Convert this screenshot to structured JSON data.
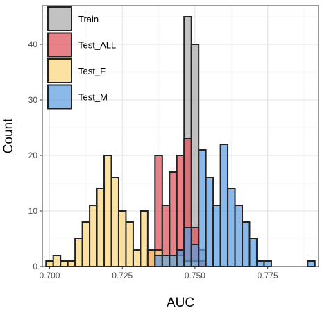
{
  "chart_data": {
    "type": "bar",
    "subtype": "overlaid-histogram",
    "xlabel": "AUC",
    "ylabel": "Count",
    "xlim": [
      0.6975,
      0.7925
    ],
    "ylim": [
      0,
      47
    ],
    "x_ticks": [
      0.7,
      0.725,
      0.75,
      0.775
    ],
    "x_tick_labels": [
      "0.700",
      "0.725",
      "0.750",
      "0.775"
    ],
    "y_ticks": [
      0,
      10,
      20,
      30,
      40
    ],
    "y_tick_labels": [
      "0",
      "10",
      "20",
      "30",
      "40"
    ],
    "bin_width": 0.0025,
    "grid": true,
    "legend_position": "top-left",
    "series": [
      {
        "name": "Train",
        "color": "#aaaaaa",
        "bins": [
          [
            0.745,
            3
          ],
          [
            0.7475,
            45
          ],
          [
            0.75,
            40
          ],
          [
            0.7525,
            3
          ]
        ]
      },
      {
        "name": "Test_ALL",
        "color": "#e0525a",
        "bins": [
          [
            0.7325,
            0
          ],
          [
            0.735,
            3
          ],
          [
            0.7375,
            20
          ],
          [
            0.74,
            11
          ],
          [
            0.7425,
            17
          ],
          [
            0.745,
            20
          ],
          [
            0.7475,
            23
          ],
          [
            0.75,
            7
          ],
          [
            0.7525,
            1
          ]
        ]
      },
      {
        "name": "Test_F",
        "color": "#f9d57e",
        "bins": [
          [
            0.7,
            1
          ],
          [
            0.7025,
            2
          ],
          [
            0.705,
            1
          ],
          [
            0.7075,
            1
          ],
          [
            0.71,
            5
          ],
          [
            0.7125,
            8
          ],
          [
            0.715,
            11
          ],
          [
            0.7175,
            14
          ],
          [
            0.72,
            20
          ],
          [
            0.7225,
            16
          ],
          [
            0.725,
            10
          ],
          [
            0.7275,
            8
          ],
          [
            0.73,
            3
          ],
          [
            0.7325,
            10
          ],
          [
            0.735,
            3
          ],
          [
            0.7375,
            3
          ],
          [
            0.74,
            2
          ],
          [
            0.7425,
            2
          ],
          [
            0.745,
            2
          ],
          [
            0.7475,
            1
          ],
          [
            0.75,
            1
          ]
        ]
      },
      {
        "name": "Test_M",
        "color": "#5e9ee2",
        "bins": [
          [
            0.7375,
            2
          ],
          [
            0.74,
            2
          ],
          [
            0.7425,
            2
          ],
          [
            0.745,
            3
          ],
          [
            0.7475,
            7
          ],
          [
            0.75,
            4
          ],
          [
            0.7525,
            21
          ],
          [
            0.755,
            16
          ],
          [
            0.7575,
            11
          ],
          [
            0.76,
            22
          ],
          [
            0.7625,
            14
          ],
          [
            0.765,
            11
          ],
          [
            0.7675,
            8
          ],
          [
            0.77,
            5
          ],
          [
            0.7725,
            1
          ],
          [
            0.775,
            1
          ],
          [
            0.79,
            1
          ]
        ]
      }
    ]
  }
}
